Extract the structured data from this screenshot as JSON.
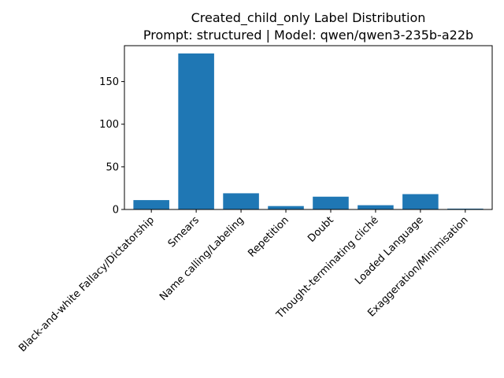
{
  "chart_data": {
    "type": "bar",
    "title_line1": "Created_child_only Label Distribution",
    "title_line2": "Prompt: structured | Model: qwen/qwen3-235b-a22b",
    "categories": [
      "Black-and-white Fallacy/Dictatorship",
      "Smears",
      "Name calling/Labeling",
      "Repetition",
      "Doubt",
      "Thought-terminating cliché",
      "Loaded Language",
      "Exaggeration/Minimisation"
    ],
    "values": [
      11,
      183,
      19,
      4,
      15,
      5,
      18,
      1
    ],
    "yticks": [
      0,
      50,
      100,
      150
    ],
    "ylim": [
      0,
      192.1
    ],
    "bar_color": "#1f77b4",
    "grid": false
  }
}
